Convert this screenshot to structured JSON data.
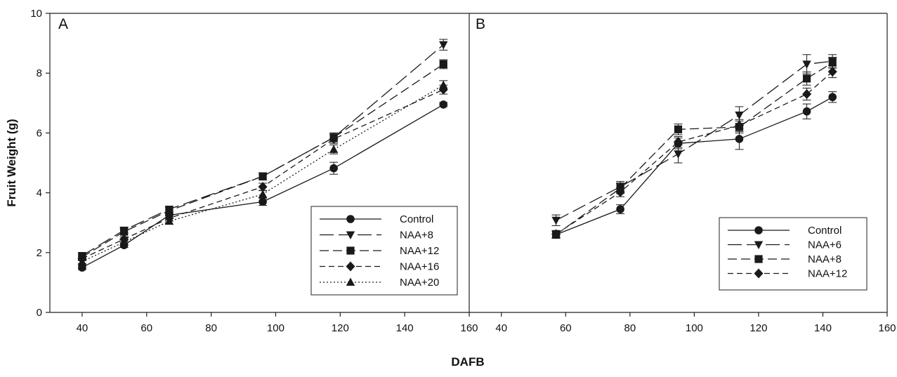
{
  "chart_data": {
    "type": "line",
    "xlabel": "DAFB",
    "ylabel": "Fruit Weight (g)",
    "ylim": [
      0,
      10
    ],
    "yticks": [
      "0",
      "2",
      "4",
      "6",
      "8",
      "10"
    ],
    "panels": [
      {
        "label": "A",
        "xlim": [
          30,
          160
        ],
        "xticks": [
          "40",
          "60",
          "80",
          "100",
          "120",
          "140",
          "160"
        ],
        "legend_position": "bottom-right",
        "series": [
          {
            "name": "Control",
            "marker": "circle",
            "dash": "solid",
            "x": [
              40,
              53,
              67,
              96,
              118,
              152
            ],
            "y": [
              1.5,
              2.25,
              3.25,
              3.7,
              4.82,
              6.95
            ],
            "err": [
              0.07,
              0.08,
              0.1,
              0.12,
              0.2,
              0.07
            ]
          },
          {
            "name": "NAA+8",
            "marker": "triangle-down",
            "dash": "longdash",
            "x": [
              40,
              53,
              67,
              96,
              118,
              152
            ],
            "y": [
              1.9,
              2.75,
              3.45,
              4.55,
              5.85,
              8.95
            ],
            "err": [
              0.07,
              0.08,
              0.1,
              0.12,
              0.15,
              0.18
            ]
          },
          {
            "name": "NAA+12",
            "marker": "square",
            "dash": "dash",
            "x": [
              40,
              53,
              67,
              96,
              118,
              152
            ],
            "y": [
              1.85,
              2.7,
              3.4,
              4.55,
              5.85,
              8.3
            ],
            "err": [
              0.07,
              0.08,
              0.1,
              0.12,
              0.15,
              0.15
            ]
          },
          {
            "name": "NAA+16",
            "marker": "diamond",
            "dash": "shortdash",
            "x": [
              40,
              53,
              67,
              96,
              118,
              152
            ],
            "y": [
              1.8,
              2.45,
              3.15,
              4.2,
              5.8,
              7.45
            ],
            "err": [
              0.07,
              0.08,
              0.1,
              0.12,
              0.15,
              0.15
            ]
          },
          {
            "name": "NAA+20",
            "marker": "triangle-up",
            "dash": "dotted",
            "x": [
              40,
              53,
              67,
              96,
              118,
              152
            ],
            "y": [
              1.7,
              2.35,
              3.05,
              3.95,
              5.45,
              7.6
            ],
            "err": [
              0.07,
              0.08,
              0.1,
              0.12,
              0.15,
              0.15
            ]
          }
        ]
      },
      {
        "label": "B",
        "xlim": [
          30,
          160
        ],
        "xticks": [
          "40",
          "60",
          "80",
          "100",
          "120",
          "140",
          "160"
        ],
        "legend_position": "bottom-right",
        "series": [
          {
            "name": "Control",
            "marker": "circle",
            "dash": "solid",
            "x": [
              57,
              77,
              95,
              114,
              135,
              143
            ],
            "y": [
              2.6,
              3.45,
              5.65,
              5.8,
              6.72,
              7.2
            ],
            "err": [
              0.12,
              0.15,
              0.18,
              0.35,
              0.25,
              0.18
            ]
          },
          {
            "name": "NAA+6",
            "marker": "triangle-down",
            "dash": "longdash",
            "x": [
              57,
              77,
              95,
              114,
              135,
              143
            ],
            "y": [
              3.08,
              4.2,
              5.3,
              6.6,
              8.3,
              8.4
            ],
            "err": [
              0.18,
              0.18,
              0.3,
              0.28,
              0.32,
              0.22
            ]
          },
          {
            "name": "NAA+8",
            "marker": "square",
            "dash": "dash",
            "x": [
              57,
              77,
              95,
              114,
              135,
              143
            ],
            "y": [
              2.6,
              4.15,
              6.12,
              6.2,
              7.82,
              8.35
            ],
            "err": [
              0.12,
              0.18,
              0.18,
              0.2,
              0.22,
              0.18
            ]
          },
          {
            "name": "NAA+12",
            "marker": "diamond",
            "dash": "shortdash",
            "x": [
              57,
              77,
              95,
              114,
              135,
              143
            ],
            "y": [
              2.62,
              4.02,
              5.7,
              6.25,
              7.3,
              8.05
            ],
            "err": [
              0.12,
              0.15,
              0.18,
              0.2,
              0.2,
              0.2
            ]
          }
        ]
      }
    ]
  }
}
